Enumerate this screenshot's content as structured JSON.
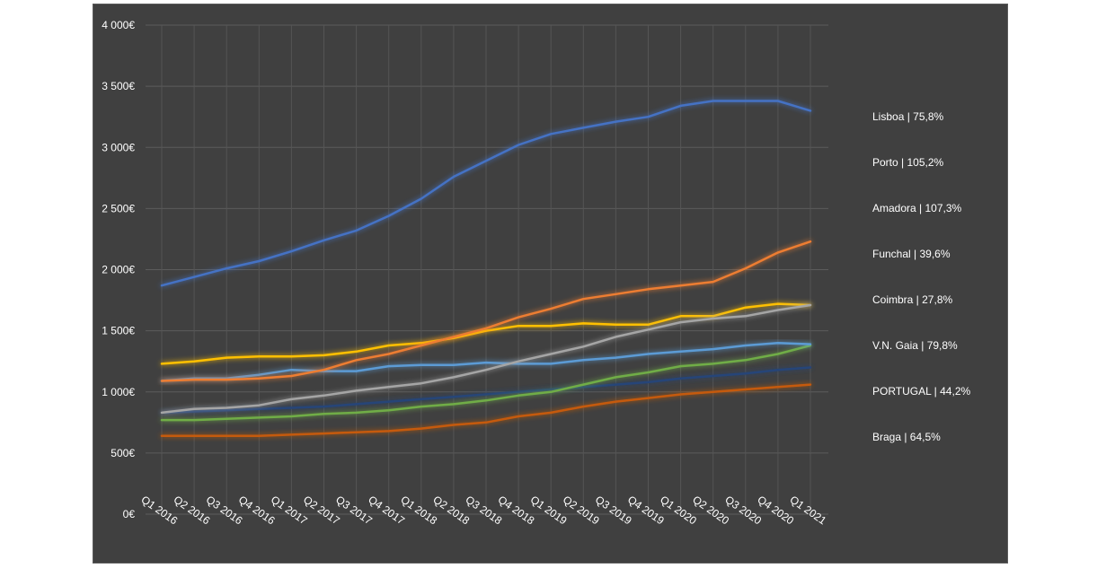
{
  "chart_data": {
    "type": "line",
    "title": "",
    "xlabel": "",
    "ylabel": "",
    "ylim": [
      0,
      4000
    ],
    "y_ticks": [
      {
        "value": 0,
        "label": "0€"
      },
      {
        "value": 500,
        "label": "500€"
      },
      {
        "value": 1000,
        "label": "1 000€"
      },
      {
        "value": 1500,
        "label": "1 500€"
      },
      {
        "value": 2000,
        "label": "2 000€"
      },
      {
        "value": 2500,
        "label": "2 500€"
      },
      {
        "value": 3000,
        "label": "3 000€"
      },
      {
        "value": 3500,
        "label": "3 500€"
      },
      {
        "value": 4000,
        "label": "4 000€"
      }
    ],
    "grid": true,
    "legend_position": "right",
    "categories": [
      "Q1 2016",
      "Q2 2016",
      "Q3 2016",
      "Q4 2016",
      "Q1 2017",
      "Q2 2017",
      "Q3 2017",
      "Q4 2017",
      "Q1 2018",
      "Q2 2018",
      "Q3 2018",
      "Q4 2018",
      "Q1 2019",
      "Q2 2019",
      "Q3 2019",
      "Q4 2019",
      "Q1 2020",
      "Q2 2020",
      "Q3 2020",
      "Q4 2020",
      "Q1 2021"
    ],
    "series": [
      {
        "name": "Lisboa | 75,8%",
        "color": "#4472c4",
        "values": [
          1870,
          1940,
          2010,
          2070,
          2150,
          2240,
          2320,
          2440,
          2580,
          2760,
          2890,
          3020,
          3110,
          3160,
          3210,
          3250,
          3340,
          3380,
          3380,
          3380,
          3300
        ]
      },
      {
        "name": "Porto | 105,2%",
        "color": "#ed7d31",
        "values": [
          1090,
          1100,
          1100,
          1110,
          1130,
          1180,
          1260,
          1310,
          1380,
          1450,
          1520,
          1610,
          1680,
          1760,
          1800,
          1840,
          1870,
          1900,
          2010,
          2140,
          2230
        ]
      },
      {
        "name": "Amadora | 107,3%",
        "color": "#a5a5a5",
        "values": [
          830,
          860,
          870,
          890,
          940,
          970,
          1010,
          1040,
          1070,
          1120,
          1180,
          1250,
          1310,
          1370,
          1450,
          1510,
          1570,
          1600,
          1620,
          1670,
          1710
        ]
      },
      {
        "name": "Funchal | 39,6%",
        "color": "#ffc000",
        "values": [
          1230,
          1250,
          1280,
          1290,
          1290,
          1300,
          1330,
          1380,
          1400,
          1440,
          1500,
          1540,
          1540,
          1560,
          1550,
          1550,
          1620,
          1620,
          1690,
          1720,
          1710
        ]
      },
      {
        "name": "Coimbra | 27,8%",
        "color": "#5b9bd5",
        "values": [
          1090,
          1110,
          1110,
          1140,
          1180,
          1170,
          1170,
          1210,
          1220,
          1220,
          1240,
          1230,
          1230,
          1260,
          1280,
          1310,
          1330,
          1350,
          1380,
          1400,
          1390
        ]
      },
      {
        "name": "V.N. Gaia | 79,8%",
        "color": "#70ad47",
        "values": [
          770,
          770,
          780,
          790,
          800,
          820,
          830,
          850,
          880,
          900,
          930,
          970,
          1000,
          1060,
          1120,
          1160,
          1210,
          1230,
          1260,
          1310,
          1380
        ]
      },
      {
        "name": "PORTUGAL | 44,2%",
        "color": "#264478",
        "values": [
          830,
          840,
          850,
          860,
          870,
          880,
          900,
          920,
          940,
          960,
          980,
          1000,
          1020,
          1040,
          1060,
          1080,
          1110,
          1130,
          1150,
          1180,
          1200
        ]
      },
      {
        "name": "Braga | 64,5%",
        "color": "#c55a11",
        "values": [
          640,
          640,
          640,
          640,
          650,
          660,
          670,
          680,
          700,
          730,
          750,
          800,
          830,
          880,
          920,
          950,
          980,
          1000,
          1020,
          1040,
          1060
        ]
      }
    ]
  }
}
